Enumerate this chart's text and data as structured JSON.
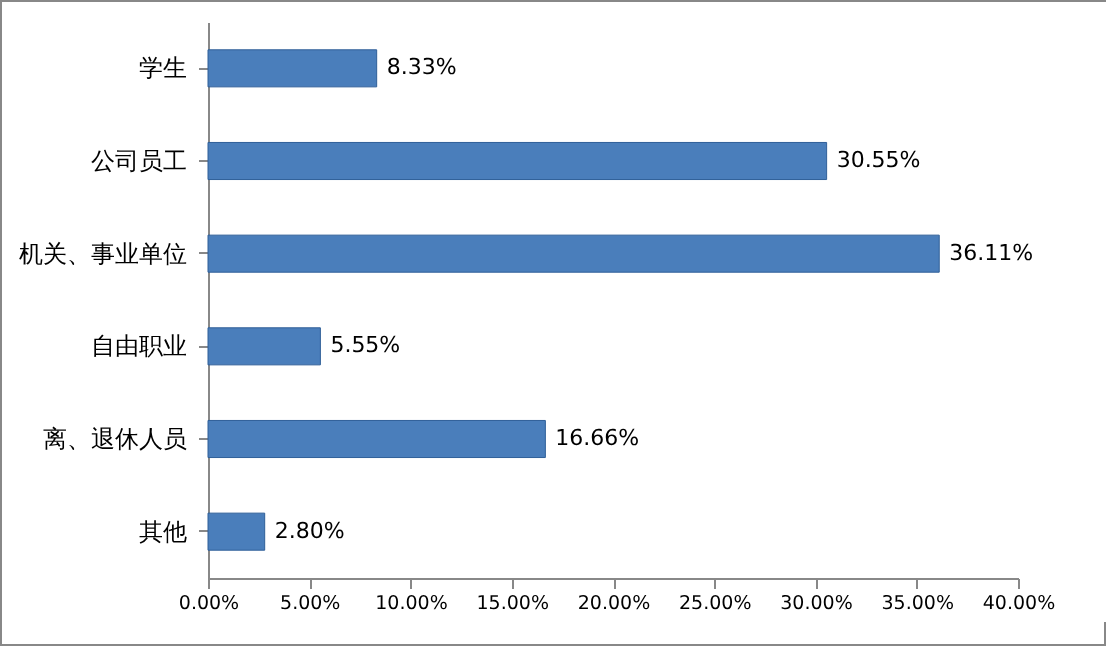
{
  "chart_data": {
    "type": "bar",
    "orientation": "horizontal",
    "categories": [
      "学生",
      "公司员工",
      "机关、事业单位",
      "自由职业",
      "离、退休人员",
      "其他"
    ],
    "values": [
      8.33,
      30.55,
      36.11,
      5.55,
      16.66,
      2.8
    ],
    "value_labels": [
      "8.33%",
      "30.55%",
      "36.11%",
      "5.55%",
      "16.66%",
      "2.80%"
    ],
    "color": "#4a7ebb",
    "xlim": [
      0,
      40
    ],
    "xticks": [
      {
        "value": 0,
        "label": "0.00%"
      },
      {
        "value": 5,
        "label": "5.00%"
      },
      {
        "value": 10,
        "label": "10.00%"
      },
      {
        "value": 15,
        "label": "15.00%"
      },
      {
        "value": 20,
        "label": "20.00%"
      },
      {
        "value": 25,
        "label": "25.00%"
      },
      {
        "value": 30,
        "label": "30.00%"
      },
      {
        "value": 35,
        "label": "35.00%"
      },
      {
        "value": 40,
        "label": "40.00%"
      }
    ],
    "grid": false
  }
}
